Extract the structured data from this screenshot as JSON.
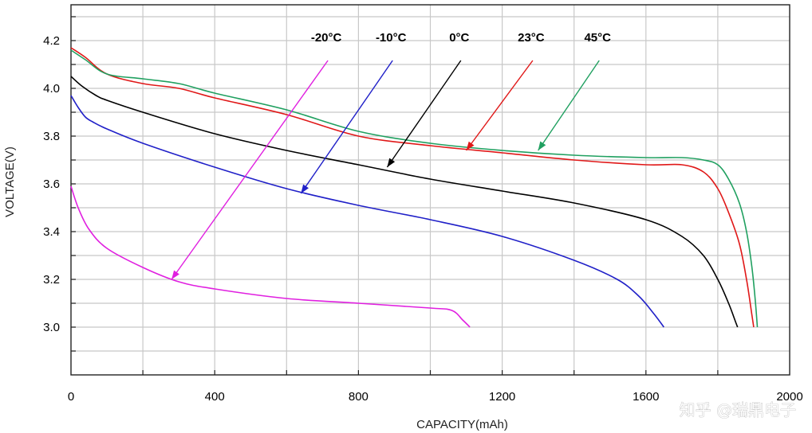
{
  "chart_data": {
    "type": "line",
    "xlabel": "CAPACITY(mAh)",
    "ylabel": "VOLTAGE(V)",
    "xlim": [
      0,
      2000
    ],
    "ylim": [
      2.8,
      4.35
    ],
    "grid": true,
    "x_ticks": [
      {
        "value": 0,
        "label": "0"
      },
      {
        "value": 400,
        "label": "400"
      },
      {
        "value": 800,
        "label": "800"
      },
      {
        "value": 1200,
        "label": "1200"
      },
      {
        "value": 1600,
        "label": "1600"
      },
      {
        "value": 2000,
        "label": "2000"
      }
    ],
    "x_grid": [
      200,
      400,
      600,
      800,
      1000,
      1200,
      1400,
      1600,
      1800
    ],
    "y_ticks": [
      {
        "value": 3.0,
        "label": "3.0"
      },
      {
        "value": 3.2,
        "label": "3.2"
      },
      {
        "value": 3.4,
        "label": "3.4"
      },
      {
        "value": 3.6,
        "label": "3.6"
      },
      {
        "value": 3.8,
        "label": "3.8"
      },
      {
        "value": 4.0,
        "label": "4.0"
      },
      {
        "value": 4.2,
        "label": "4.2"
      }
    ],
    "y_grid": [
      2.9,
      3.0,
      3.1,
      3.2,
      3.3,
      3.4,
      3.5,
      3.6,
      3.7,
      3.8,
      3.9,
      4.0,
      4.1,
      4.2,
      4.3
    ],
    "series": [
      {
        "name": "-20°C",
        "color": "#e020e0",
        "points": [
          [
            0,
            3.59
          ],
          [
            20,
            3.5
          ],
          [
            50,
            3.41
          ],
          [
            100,
            3.33
          ],
          [
            200,
            3.25
          ],
          [
            300,
            3.19
          ],
          [
            400,
            3.16
          ],
          [
            600,
            3.12
          ],
          [
            800,
            3.1
          ],
          [
            1000,
            3.08
          ],
          [
            1060,
            3.07
          ],
          [
            1090,
            3.03
          ],
          [
            1110,
            3.0
          ]
        ],
        "label_anchor": [
          715,
          4.15
        ],
        "arrow_tip": [
          280,
          3.2
        ]
      },
      {
        "name": "-10°C",
        "color": "#2020c8",
        "points": [
          [
            0,
            3.97
          ],
          [
            20,
            3.92
          ],
          [
            40,
            3.88
          ],
          [
            60,
            3.86
          ],
          [
            100,
            3.83
          ],
          [
            200,
            3.77
          ],
          [
            400,
            3.67
          ],
          [
            600,
            3.58
          ],
          [
            800,
            3.51
          ],
          [
            1000,
            3.45
          ],
          [
            1200,
            3.38
          ],
          [
            1400,
            3.28
          ],
          [
            1520,
            3.2
          ],
          [
            1580,
            3.13
          ],
          [
            1620,
            3.06
          ],
          [
            1650,
            3.0
          ]
        ],
        "label_anchor": [
          895,
          4.15
        ],
        "arrow_tip": [
          640,
          3.56
        ]
      },
      {
        "name": "0°C",
        "color": "#000000",
        "points": [
          [
            0,
            4.05
          ],
          [
            30,
            4.01
          ],
          [
            70,
            3.97
          ],
          [
            100,
            3.95
          ],
          [
            200,
            3.9
          ],
          [
            400,
            3.81
          ],
          [
            600,
            3.74
          ],
          [
            800,
            3.68
          ],
          [
            1000,
            3.62
          ],
          [
            1200,
            3.57
          ],
          [
            1400,
            3.52
          ],
          [
            1600,
            3.45
          ],
          [
            1700,
            3.38
          ],
          [
            1760,
            3.3
          ],
          [
            1800,
            3.2
          ],
          [
            1830,
            3.1
          ],
          [
            1850,
            3.02
          ],
          [
            1855,
            3.0
          ]
        ],
        "label_anchor": [
          1085,
          4.15
        ],
        "arrow_tip": [
          880,
          3.67
        ]
      },
      {
        "name": "23°C",
        "color": "#e01818",
        "points": [
          [
            0,
            4.17
          ],
          [
            40,
            4.13
          ],
          [
            100,
            4.06
          ],
          [
            200,
            4.02
          ],
          [
            300,
            4.0
          ],
          [
            400,
            3.96
          ],
          [
            600,
            3.89
          ],
          [
            800,
            3.8
          ],
          [
            1000,
            3.76
          ],
          [
            1200,
            3.73
          ],
          [
            1400,
            3.7
          ],
          [
            1600,
            3.68
          ],
          [
            1700,
            3.68
          ],
          [
            1760,
            3.65
          ],
          [
            1800,
            3.58
          ],
          [
            1830,
            3.48
          ],
          [
            1860,
            3.35
          ],
          [
            1880,
            3.2
          ],
          [
            1895,
            3.05
          ],
          [
            1900,
            3.0
          ]
        ],
        "label_anchor": [
          1285,
          4.15
        ],
        "arrow_tip": [
          1100,
          3.74
        ]
      },
      {
        "name": "45°C",
        "color": "#20a060",
        "points": [
          [
            0,
            4.16
          ],
          [
            40,
            4.12
          ],
          [
            100,
            4.06
          ],
          [
            200,
            4.04
          ],
          [
            300,
            4.02
          ],
          [
            400,
            3.98
          ],
          [
            600,
            3.91
          ],
          [
            800,
            3.82
          ],
          [
            1000,
            3.77
          ],
          [
            1200,
            3.74
          ],
          [
            1400,
            3.72
          ],
          [
            1600,
            3.71
          ],
          [
            1700,
            3.71
          ],
          [
            1760,
            3.7
          ],
          [
            1800,
            3.68
          ],
          [
            1830,
            3.62
          ],
          [
            1860,
            3.52
          ],
          [
            1880,
            3.4
          ],
          [
            1895,
            3.25
          ],
          [
            1905,
            3.1
          ],
          [
            1910,
            3.0
          ]
        ],
        "label_anchor": [
          1470,
          4.15
        ],
        "arrow_tip": [
          1300,
          3.74
        ]
      }
    ]
  },
  "watermark": {
    "text": "知乎 @瑞鼎电子"
  }
}
